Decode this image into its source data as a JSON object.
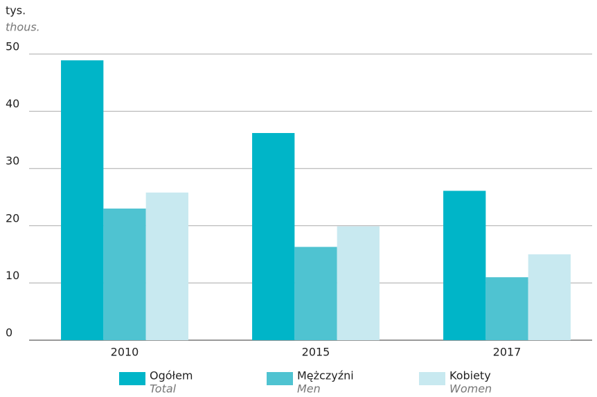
{
  "chart_data": {
    "type": "bar",
    "y_label": "tys.",
    "y_label_en": "thous.",
    "categories": [
      "2010",
      "2015",
      "2017"
    ],
    "series": [
      {
        "name": "Ogółem",
        "name_en": "Total",
        "color": "#00b5c8",
        "values": [
          48.9,
          36.2,
          26.1
        ]
      },
      {
        "name": "Mężczyźni",
        "name_en": "Men",
        "color": "#4fc3d1",
        "values": [
          23.0,
          16.3,
          11.0
        ]
      },
      {
        "name": "Kobiety",
        "name_en": "Women",
        "color": "#c8e9f0",
        "values": [
          25.8,
          19.9,
          15.0
        ]
      }
    ],
    "ylim": [
      0,
      50
    ],
    "yticks": [
      0,
      10,
      20,
      30,
      40,
      50
    ],
    "grid": true,
    "legend": "bottom"
  }
}
